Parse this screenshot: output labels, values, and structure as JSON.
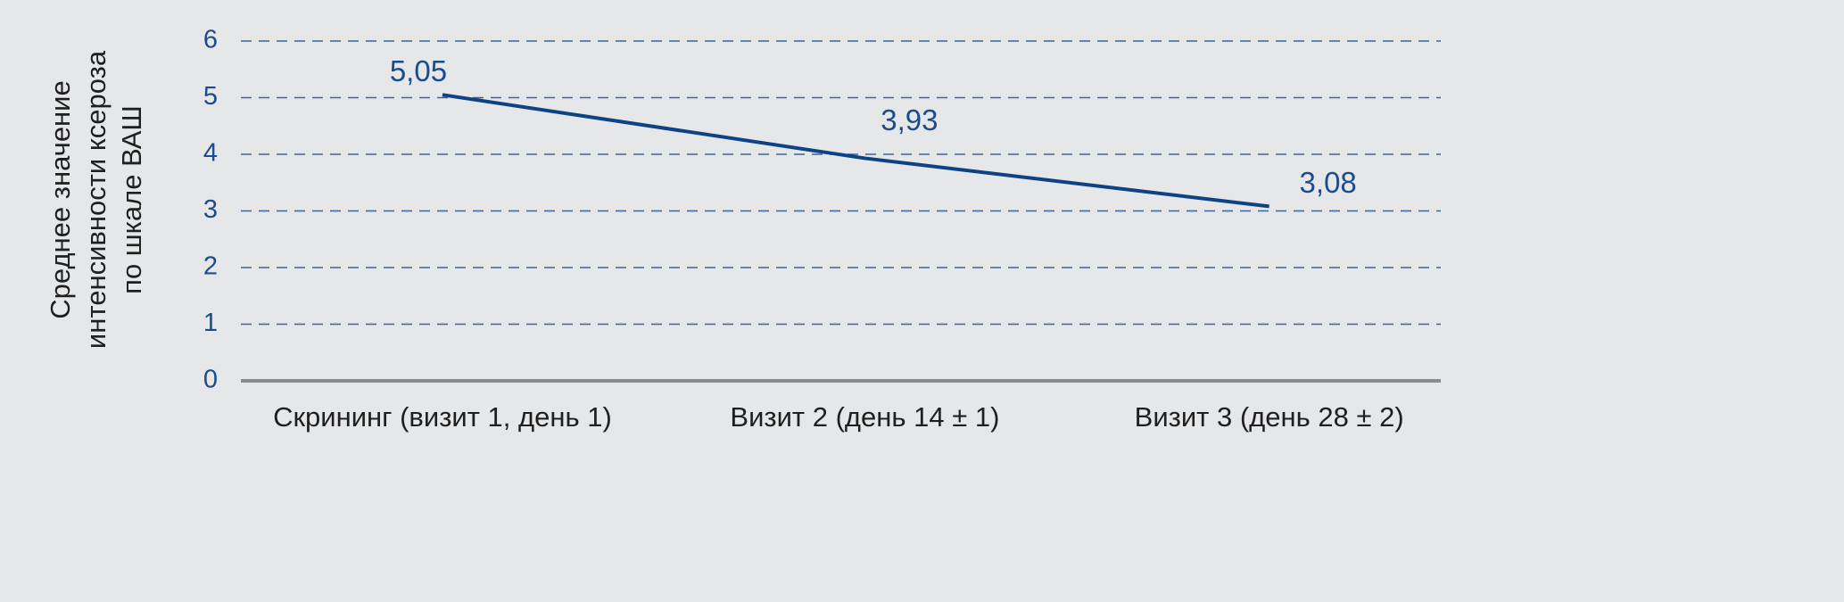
{
  "chart_data": {
    "type": "line",
    "ylabel": [
      "Среднее значение",
      "интенсивности ксероза",
      "по шкале ВАШ"
    ],
    "categories": [
      "Скрининг (визит 1, день 1)",
      "Визит 2 (день 14 ± 1)",
      "Визит 3 (день 28 ± 2)"
    ],
    "values": [
      5.05,
      3.93,
      3.08
    ],
    "value_labels": [
      "5,05",
      "3,93",
      "3,08"
    ],
    "color": "#0d4383",
    "ylim": [
      0,
      6
    ],
    "yticks": [
      0,
      1,
      2,
      3,
      4,
      5,
      6
    ],
    "grid": true
  }
}
